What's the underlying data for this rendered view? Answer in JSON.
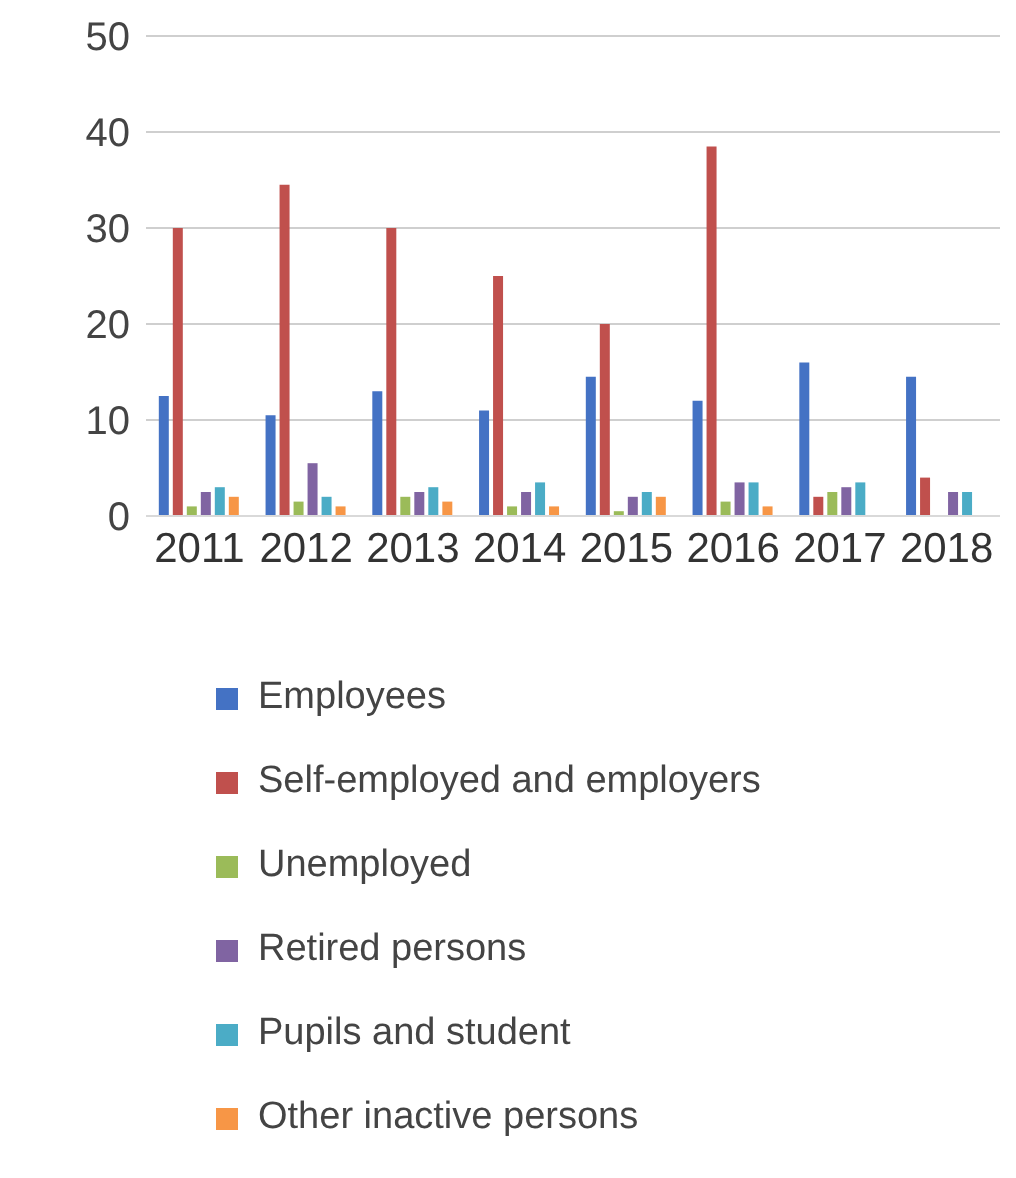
{
  "chart_data": {
    "type": "bar",
    "categories": [
      "2011",
      "2012",
      "2013",
      "2014",
      "2015",
      "2016",
      "2017",
      "2018"
    ],
    "series": [
      {
        "name": "Employees",
        "color": "#4472c4",
        "values": [
          12.5,
          10.5,
          13,
          11,
          14.5,
          12,
          16,
          14.5
        ]
      },
      {
        "name": "Self-employed and employers",
        "color": "#c0504d",
        "values": [
          30,
          34.5,
          30,
          25,
          20,
          38.5,
          2,
          4
        ]
      },
      {
        "name": "Unemployed",
        "color": "#9bbb59",
        "values": [
          1,
          1.5,
          2,
          1,
          0.5,
          1.5,
          2.5,
          0
        ]
      },
      {
        "name": "Retired persons",
        "color": "#8064a2",
        "values": [
          2.5,
          5.5,
          2.5,
          2.5,
          2,
          3.5,
          3,
          2.5
        ]
      },
      {
        "name": "Pupils and student",
        "color": "#4bacc6",
        "values": [
          3,
          2,
          3,
          3.5,
          2.5,
          3.5,
          3.5,
          2.5
        ]
      },
      {
        "name": "Other inactive persons",
        "color": "#f79646",
        "values": [
          2,
          1,
          1.5,
          1,
          2,
          1,
          0,
          0
        ]
      }
    ],
    "ylim": [
      0,
      50
    ],
    "yticks": [
      0,
      10,
      20,
      30,
      40,
      50
    ],
    "grid": "y",
    "legend": "bottom"
  }
}
